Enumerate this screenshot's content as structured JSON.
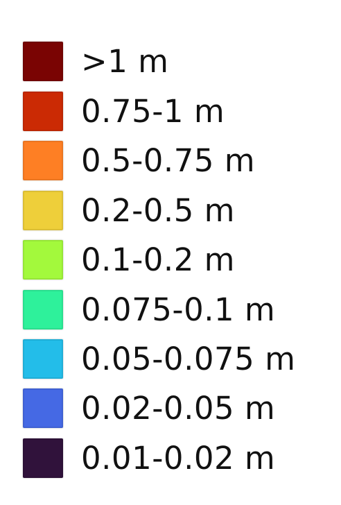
{
  "legend": {
    "items": [
      {
        "label": ">1 m",
        "color": "#7a0403"
      },
      {
        "label": "0.75-1 m",
        "color": "#cb2a04"
      },
      {
        "label": "0.5-0.75 m",
        "color": "#fe7f24"
      },
      {
        "label": "0.2-0.5 m",
        "color": "#eecf3a"
      },
      {
        "label": "0.1-0.2 m",
        "color": "#a3f93c"
      },
      {
        "label": "0.075-0.1 m",
        "color": "#2ef19b"
      },
      {
        "label": "0.05-0.075 m",
        "color": "#23bde9"
      },
      {
        "label": "0.02-0.05 m",
        "color": "#4569e4"
      },
      {
        "label": "0.01-0.02 m",
        "color": "#30123b"
      }
    ]
  }
}
